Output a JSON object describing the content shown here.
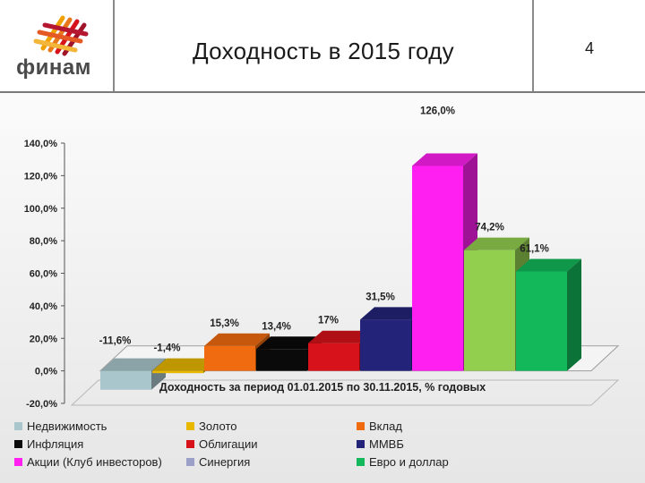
{
  "header": {
    "brand": "финам",
    "title": "Доходность в 2015 году",
    "page_number": "4"
  },
  "colors": {
    "Недвижимость": "#a9c6cc",
    "Золото": "#e8b800",
    "Вклад": "#f06b0f",
    "Инфляция": "#0a0a0a",
    "Облигации": "#d8121b",
    "ММВБ": "#23237a",
    "Акции (Клуб инвесторов)": "#ff1ff0",
    "Синергия": "#9aa0c8",
    "Евро и доллар": "#12b85a",
    "green_bar": "#92cf4f"
  },
  "chart_data": {
    "type": "bar",
    "title": "Доходность за период 01.01.2015 по 30.11.2015, % годовых",
    "ylim": [
      -20,
      140
    ],
    "yticks": [
      "-20,0%",
      "0,0%",
      "20,0%",
      "40,0%",
      "60,0%",
      "80,0%",
      "100,0%",
      "120,0%",
      "140,0%"
    ],
    "bars": [
      {
        "value": -11.6,
        "label": "-11,6%",
        "color": "#a9c6cc"
      },
      {
        "value": -1.4,
        "label": "-1,4%",
        "color": "#e8b800"
      },
      {
        "value": 15.3,
        "label": "15,3%",
        "color": "#f06b0f"
      },
      {
        "value": 13.4,
        "label": "13,4%",
        "color": "#0a0a0a"
      },
      {
        "value": 17,
        "label": "17%",
        "color": "#d8121b"
      },
      {
        "value": 31.5,
        "label": "31,5%",
        "color": "#23237a"
      },
      {
        "value": 126.0,
        "label": "126,0%",
        "color": "#ff1ff0"
      },
      {
        "value": 74.2,
        "label": "74,2%",
        "color": "#92cf4f"
      },
      {
        "value": 61.1,
        "label": "61,1%",
        "color": "#12b85a"
      }
    ],
    "legend": [
      [
        "Недвижимость",
        "Золото",
        "Вклад"
      ],
      [
        "Инфляция",
        "Облигации",
        "ММВБ"
      ],
      [
        "Акции (Клуб инвесторов)",
        "Синергия",
        "Евро и доллар"
      ]
    ],
    "legend_position": "bottom"
  }
}
